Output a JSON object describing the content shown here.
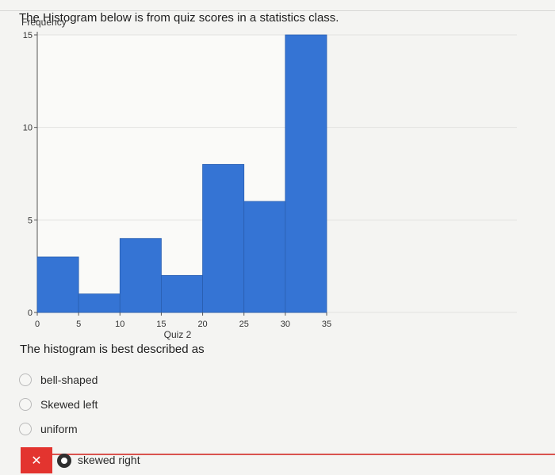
{
  "question": "The Histogram below is from quiz scores in a statistics class.",
  "prompt": "The histogram is best described as",
  "options": [
    {
      "label": "bell-shaped"
    },
    {
      "label": "Skewed left"
    },
    {
      "label": "uniform"
    }
  ],
  "selected_answer": {
    "label": "skewed right",
    "status_icon": "x-mark-icon",
    "status_glyph": "✕"
  },
  "chart_data": {
    "type": "bar",
    "title": "",
    "xlabel": "Quiz 2",
    "ylabel": "Frequency",
    "xlim": [
      0,
      35
    ],
    "ylim": [
      0,
      15
    ],
    "x_ticks": [
      0,
      5,
      10,
      15,
      20,
      25,
      30,
      35
    ],
    "y_ticks": [
      0,
      5,
      10,
      15
    ],
    "bins": [
      {
        "start": 0,
        "end": 5,
        "value": 3
      },
      {
        "start": 5,
        "end": 10,
        "value": 1
      },
      {
        "start": 10,
        "end": 15,
        "value": 4
      },
      {
        "start": 15,
        "end": 20,
        "value": 2
      },
      {
        "start": 20,
        "end": 25,
        "value": 8
      },
      {
        "start": 25,
        "end": 30,
        "value": 6
      },
      {
        "start": 30,
        "end": 35,
        "value": 15
      }
    ],
    "bar_color": "#3574d4",
    "grid": true
  }
}
